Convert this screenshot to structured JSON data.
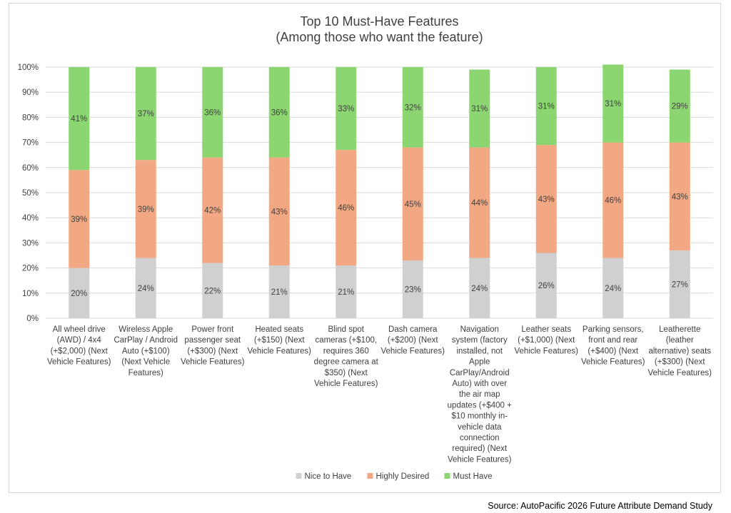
{
  "chart_data": {
    "type": "bar",
    "stacked": true,
    "title": [
      "Top 10 Must-Have Features",
      "(Among those who want the feature)"
    ],
    "categories": [
      [
        "All wheel drive",
        "(AWD) / 4x4",
        "(+$2,000) (Next",
        "Vehicle Features)"
      ],
      [
        "Wireless Apple",
        "CarPlay / Android",
        "Auto (+$100)",
        "(Next Vehicle",
        "Features)"
      ],
      [
        "Power front",
        "passenger seat",
        "(+$300) (Next",
        "Vehicle Features)"
      ],
      [
        "Heated seats",
        "(+$150) (Next",
        "Vehicle Features)"
      ],
      [
        "Blind spot",
        "cameras (+$100,",
        "requires 360",
        "degree camera at",
        "$350) (Next",
        "Vehicle Features)"
      ],
      [
        "Dash camera",
        "(+$200) (Next",
        "Vehicle Features)"
      ],
      [
        "Navigation",
        "system (factory",
        "installed, not",
        "Apple",
        "CarPlay/Android",
        "Auto) with over",
        "the air map",
        "updates (+$400 +",
        "$10 monthly in-",
        "vehicle data",
        "connection",
        "required) (Next",
        "Vehicle Features)"
      ],
      [
        "Leather seats",
        "(+$1,000) (Next",
        "Vehicle Features)"
      ],
      [
        "Parking sensors,",
        "front and rear",
        "(+$400) (Next",
        "Vehicle Features)"
      ],
      [
        "Leatherette",
        "(leather",
        "alternative) seats",
        "(+$300) (Next",
        "Vehicle Features)"
      ]
    ],
    "series": [
      {
        "name": "Nice to Have",
        "color": "#d0d0d0",
        "values": [
          20,
          24,
          22,
          21,
          21,
          23,
          24,
          26,
          24,
          27
        ],
        "labels": [
          "20%",
          "24%",
          "22%",
          "21%",
          "21%",
          "23%",
          "24%",
          "26%",
          "24%",
          "27%"
        ]
      },
      {
        "name": "Highly Desired",
        "color": "#f2a882",
        "values": [
          39,
          39,
          42,
          43,
          46,
          45,
          44,
          43,
          46,
          43
        ],
        "labels": [
          "39%",
          "39%",
          "42%",
          "43%",
          "46%",
          "45%",
          "44%",
          "43%",
          "46%",
          "43%"
        ]
      },
      {
        "name": "Must Have",
        "color": "#8cd672",
        "values": [
          41,
          37,
          36,
          36,
          33,
          32,
          31,
          31,
          31,
          29
        ],
        "labels": [
          "41%",
          "37%",
          "36%",
          "36%",
          "33%",
          "32%",
          "31%",
          "31%",
          "31%",
          "29%"
        ]
      }
    ],
    "yticks": [
      "0%",
      "10%",
      "20%",
      "30%",
      "40%",
      "50%",
      "60%",
      "70%",
      "80%",
      "90%",
      "100%"
    ],
    "ylim": [
      0,
      100
    ],
    "grid": true,
    "legend_position": "bottom"
  },
  "source": "Source: AutoPacific 2026 Future Attribute Demand Study"
}
